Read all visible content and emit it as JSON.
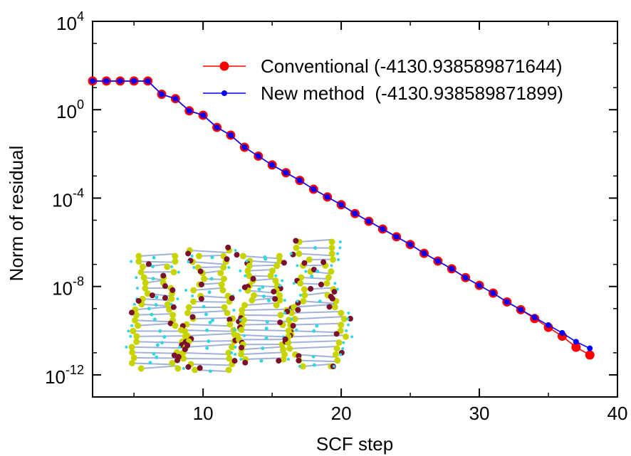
{
  "chart_data": {
    "type": "line",
    "title": "",
    "xlabel": "SCF step",
    "ylabel": "Norm of residual",
    "xlim": [
      2,
      40
    ],
    "ylim_log10": [
      -13,
      4
    ],
    "y_scale": "log",
    "x_ticks": [
      10,
      20,
      30,
      40
    ],
    "y_ticks_log10": [
      -12,
      -8,
      -4,
      0,
      4
    ],
    "grid": false,
    "legend_position": "top-right",
    "series": [
      {
        "name": "Conventional (-4130.938589871644)",
        "color": "#ff0000",
        "marker": "circle",
        "x": [
          2,
          3,
          4,
          5,
          6,
          7,
          8,
          9,
          10,
          11,
          12,
          13,
          14,
          15,
          16,
          17,
          18,
          19,
          20,
          21,
          22,
          23,
          24,
          25,
          26,
          27,
          28,
          29,
          30,
          31,
          32,
          33,
          34,
          35,
          36,
          37,
          38
        ],
        "y_log10": [
          1.3,
          1.3,
          1.3,
          1.3,
          1.3,
          0.7,
          0.5,
          -0.05,
          -0.25,
          -0.8,
          -1.15,
          -1.7,
          -2.1,
          -2.5,
          -2.85,
          -3.2,
          -3.6,
          -3.95,
          -4.3,
          -4.7,
          -5.05,
          -5.4,
          -5.75,
          -6.1,
          -6.5,
          -6.85,
          -7.2,
          -7.6,
          -7.95,
          -8.3,
          -8.7,
          -9.05,
          -9.45,
          -9.85,
          -10.25,
          -10.75,
          -11.1
        ]
      },
      {
        "name": "New method  (-4130.938589871899)",
        "color": "#0000ff",
        "marker": "circle",
        "x": [
          2,
          3,
          4,
          5,
          6,
          7,
          8,
          9,
          10,
          11,
          12,
          13,
          14,
          15,
          16,
          17,
          18,
          19,
          20,
          21,
          22,
          23,
          24,
          25,
          26,
          27,
          28,
          29,
          30,
          31,
          32,
          33,
          34,
          35,
          36,
          37,
          38
        ],
        "y_log10": [
          1.3,
          1.3,
          1.3,
          1.3,
          1.3,
          0.7,
          0.5,
          -0.05,
          -0.25,
          -0.8,
          -1.15,
          -1.7,
          -2.1,
          -2.5,
          -2.85,
          -3.2,
          -3.6,
          -3.95,
          -4.3,
          -4.7,
          -5.05,
          -5.4,
          -5.75,
          -6.1,
          -6.5,
          -6.85,
          -7.2,
          -7.6,
          -7.95,
          -8.3,
          -8.7,
          -9.05,
          -9.4,
          -9.75,
          -10.1,
          -10.5,
          -10.8
        ]
      }
    ]
  },
  "inset": {
    "icon": "molecular-structure-image",
    "atom_colors": {
      "a": "#c8d400",
      "b": "#7a0f2e",
      "c": "#33d6e0",
      "d": "#8aa0d0"
    }
  }
}
